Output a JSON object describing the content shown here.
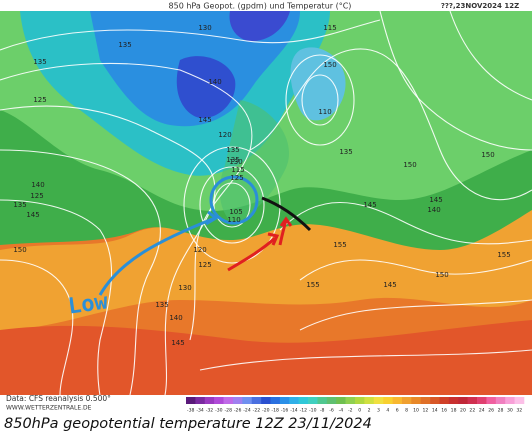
{
  "header": {
    "title": "850 hPa Geopot. (gpdm) und Temperatur (°C)",
    "run": "???,23NOV2024 12Z"
  },
  "map": {
    "contour_labels": [
      "130",
      "135",
      "140",
      "125",
      "135",
      "145",
      "120",
      "115",
      "110",
      "125",
      "135",
      "135",
      "115",
      "110",
      "105",
      "120",
      "125",
      "135",
      "140",
      "145",
      "150",
      "125",
      "130",
      "135",
      "140",
      "145",
      "150",
      "155",
      "130",
      "135",
      "145",
      "140",
      "150",
      "145",
      "150",
      "155",
      "145",
      "150",
      "155"
    ],
    "annotation": "Low"
  },
  "footer": {
    "source": "Data: CFS reanalysis 0.500°",
    "website": "WWW.WETTERZENTRALE.DE",
    "colorbar_labels": [
      "-38",
      "-34",
      "-32",
      "-30",
      "-28",
      "-26",
      "-24",
      "-22",
      "-20",
      "-18",
      "-16",
      "-14",
      "-12",
      "-10",
      "-8",
      "-6",
      "-4",
      "-2",
      "0",
      "2",
      "3",
      "4",
      "6",
      "8",
      "10",
      "12",
      "14",
      "16",
      "18",
      "20",
      "22",
      "24",
      "26",
      "28",
      "30",
      "32"
    ]
  },
  "caption": "850hPa geopotential temperature 12Z 23/11/2024"
}
